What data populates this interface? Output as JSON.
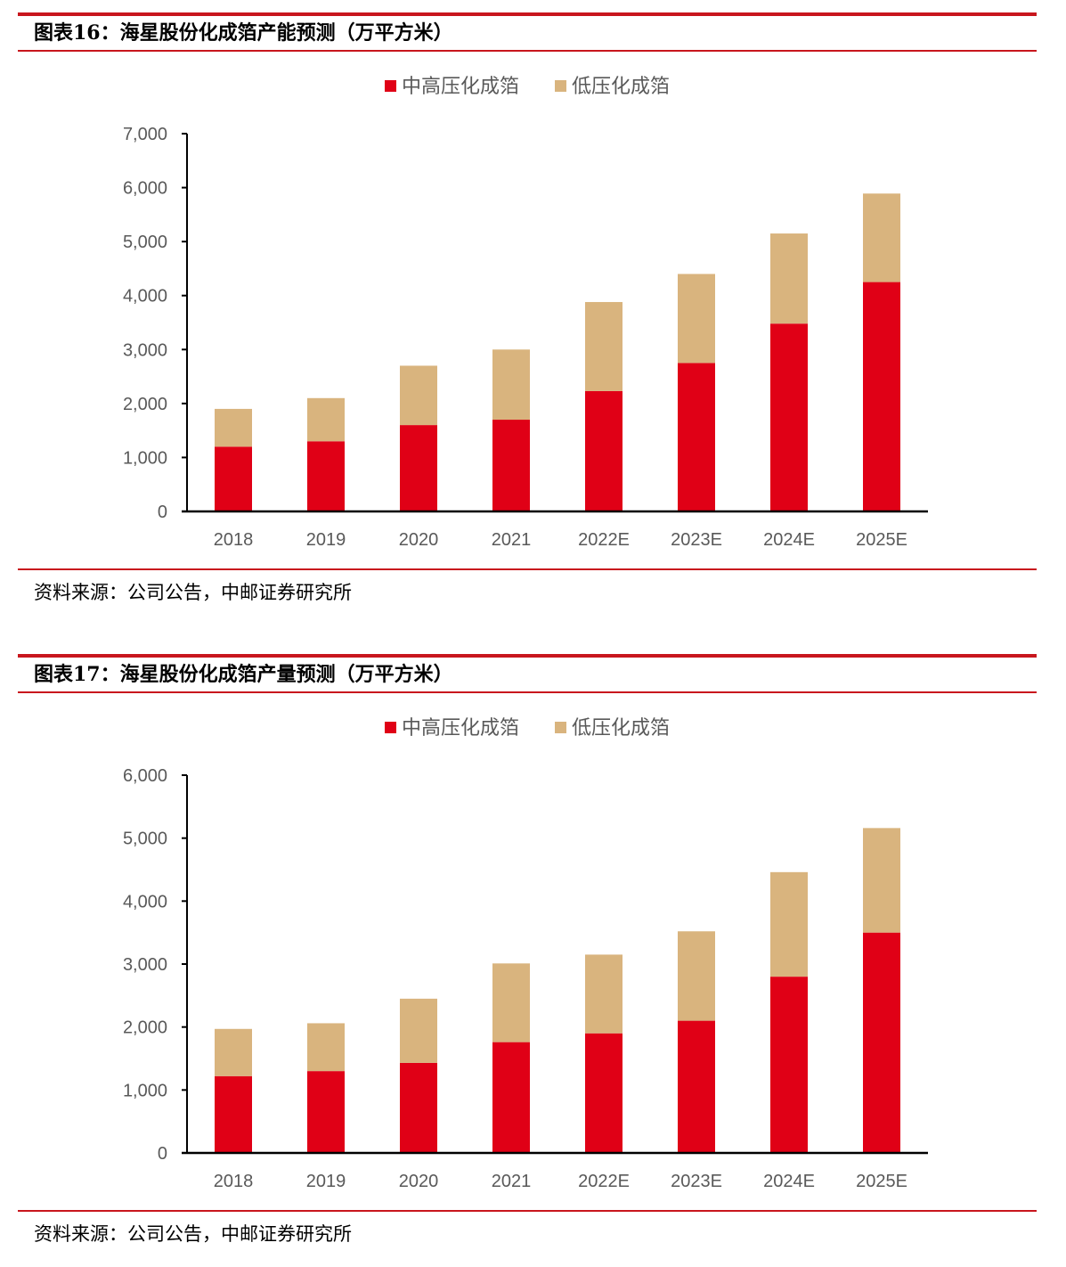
{
  "colors": {
    "rule": "#c8161d",
    "mid_high": "#e00016",
    "low": "#d9b47e"
  },
  "charts": [
    {
      "title": "图表16：海星股份化成箔产能预测（万平方米）",
      "source": "资料来源：公司公告，中邮证券研究所"
    },
    {
      "title": "图表17：海星股份化成箔产量预测（万平方米）",
      "source": "资料来源：公司公告，中邮证券研究所"
    }
  ],
  "chart_data": [
    {
      "type": "bar",
      "stacked": true,
      "title": "图表16：海星股份化成箔产能预测（万平方米）",
      "categories": [
        "2018",
        "2019",
        "2020",
        "2021",
        "2022E",
        "2023E",
        "2024E",
        "2025E"
      ],
      "series": [
        {
          "name": "中高压化成箔",
          "color": "#e00016",
          "values": [
            1200,
            1300,
            1600,
            1700,
            2230,
            2750,
            3480,
            4250
          ]
        },
        {
          "name": "低压化成箔",
          "color": "#d9b47e",
          "values": [
            700,
            800,
            1100,
            1300,
            1650,
            1650,
            1670,
            1640
          ]
        }
      ],
      "ylim": [
        0,
        7000
      ],
      "yticks": [
        0,
        1000,
        2000,
        3000,
        4000,
        5000,
        6000,
        7000
      ],
      "ytick_labels": [
        "0",
        "1,000",
        "2,000",
        "3,000",
        "4,000",
        "5,000",
        "6,000",
        "7,000"
      ],
      "legend_position": "top",
      "grid": false
    },
    {
      "type": "bar",
      "stacked": true,
      "title": "图表17：海星股份化成箔产量预测（万平方米）",
      "categories": [
        "2018",
        "2019",
        "2020",
        "2021",
        "2022E",
        "2023E",
        "2024E",
        "2025E"
      ],
      "series": [
        {
          "name": "中高压化成箔",
          "color": "#e00016",
          "values": [
            1220,
            1300,
            1430,
            1760,
            1900,
            2100,
            2800,
            3500
          ]
        },
        {
          "name": "低压化成箔",
          "color": "#d9b47e",
          "values": [
            750,
            760,
            1020,
            1250,
            1250,
            1420,
            1660,
            1660
          ]
        }
      ],
      "ylim": [
        0,
        6000
      ],
      "yticks": [
        0,
        1000,
        2000,
        3000,
        4000,
        5000,
        6000
      ],
      "ytick_labels": [
        "0",
        "1,000",
        "2,000",
        "3,000",
        "4,000",
        "5,000",
        "6,000"
      ],
      "legend_position": "top",
      "grid": false
    }
  ]
}
